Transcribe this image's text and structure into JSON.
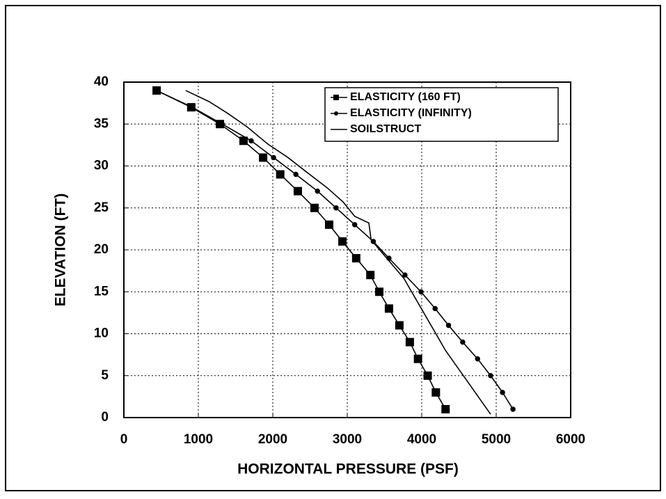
{
  "chart_data": {
    "type": "line",
    "xlabel": "HORIZONTAL PRESSURE (PSF)",
    "ylabel": "ELEVATION (FT)",
    "xlim": [
      0,
      6000
    ],
    "xticks": [
      0,
      1000,
      2000,
      3000,
      4000,
      5000,
      6000
    ],
    "ylim": [
      0,
      40
    ],
    "yticks": [
      0,
      5,
      10,
      15,
      20,
      25,
      30,
      35,
      40
    ],
    "grid": true,
    "legend": "upper right",
    "series": [
      {
        "name": "ELASTICITY (160 FT)",
        "color": "#000000",
        "marker": "square",
        "x": [
          440,
          905,
          1290,
          1607,
          1870,
          2100,
          2336,
          2560,
          2757,
          2935,
          3120,
          3310,
          3430,
          3560,
          3700,
          3840,
          3950,
          4080,
          4190,
          4320
        ],
        "values": [
          39,
          37,
          35,
          33,
          31,
          29,
          27,
          25,
          23,
          21,
          19,
          17,
          15,
          13,
          11,
          9,
          7,
          5,
          3,
          1
        ]
      },
      {
        "name": "ELASTICITY (INFINITY)",
        "color": "#000000",
        "marker": "diamond",
        "x": [
          440,
          920,
          1320,
          1710,
          2010,
          2310,
          2600,
          2850,
          3100,
          3350,
          3560,
          3775,
          3990,
          4180,
          4360,
          4550,
          4750,
          4925,
          5085,
          5225
        ],
        "values": [
          39,
          37,
          35,
          33,
          31,
          29,
          27,
          25,
          23,
          21,
          19,
          17,
          15,
          13,
          11,
          9,
          7,
          5,
          3,
          1
        ]
      },
      {
        "name": "SOILSTRUCT",
        "color": "#000000",
        "marker": "none",
        "x": [
          830,
          1140,
          1390,
          1650,
          1935,
          2205,
          2450,
          2730,
          2945,
          3100,
          3290,
          3320,
          3760,
          4320,
          4925
        ],
        "values": [
          39,
          37.7,
          36.3,
          34.7,
          32.6,
          31,
          29.3,
          27.4,
          25.7,
          24,
          23.2,
          21.2,
          16.6,
          8,
          0.4
        ]
      }
    ]
  }
}
